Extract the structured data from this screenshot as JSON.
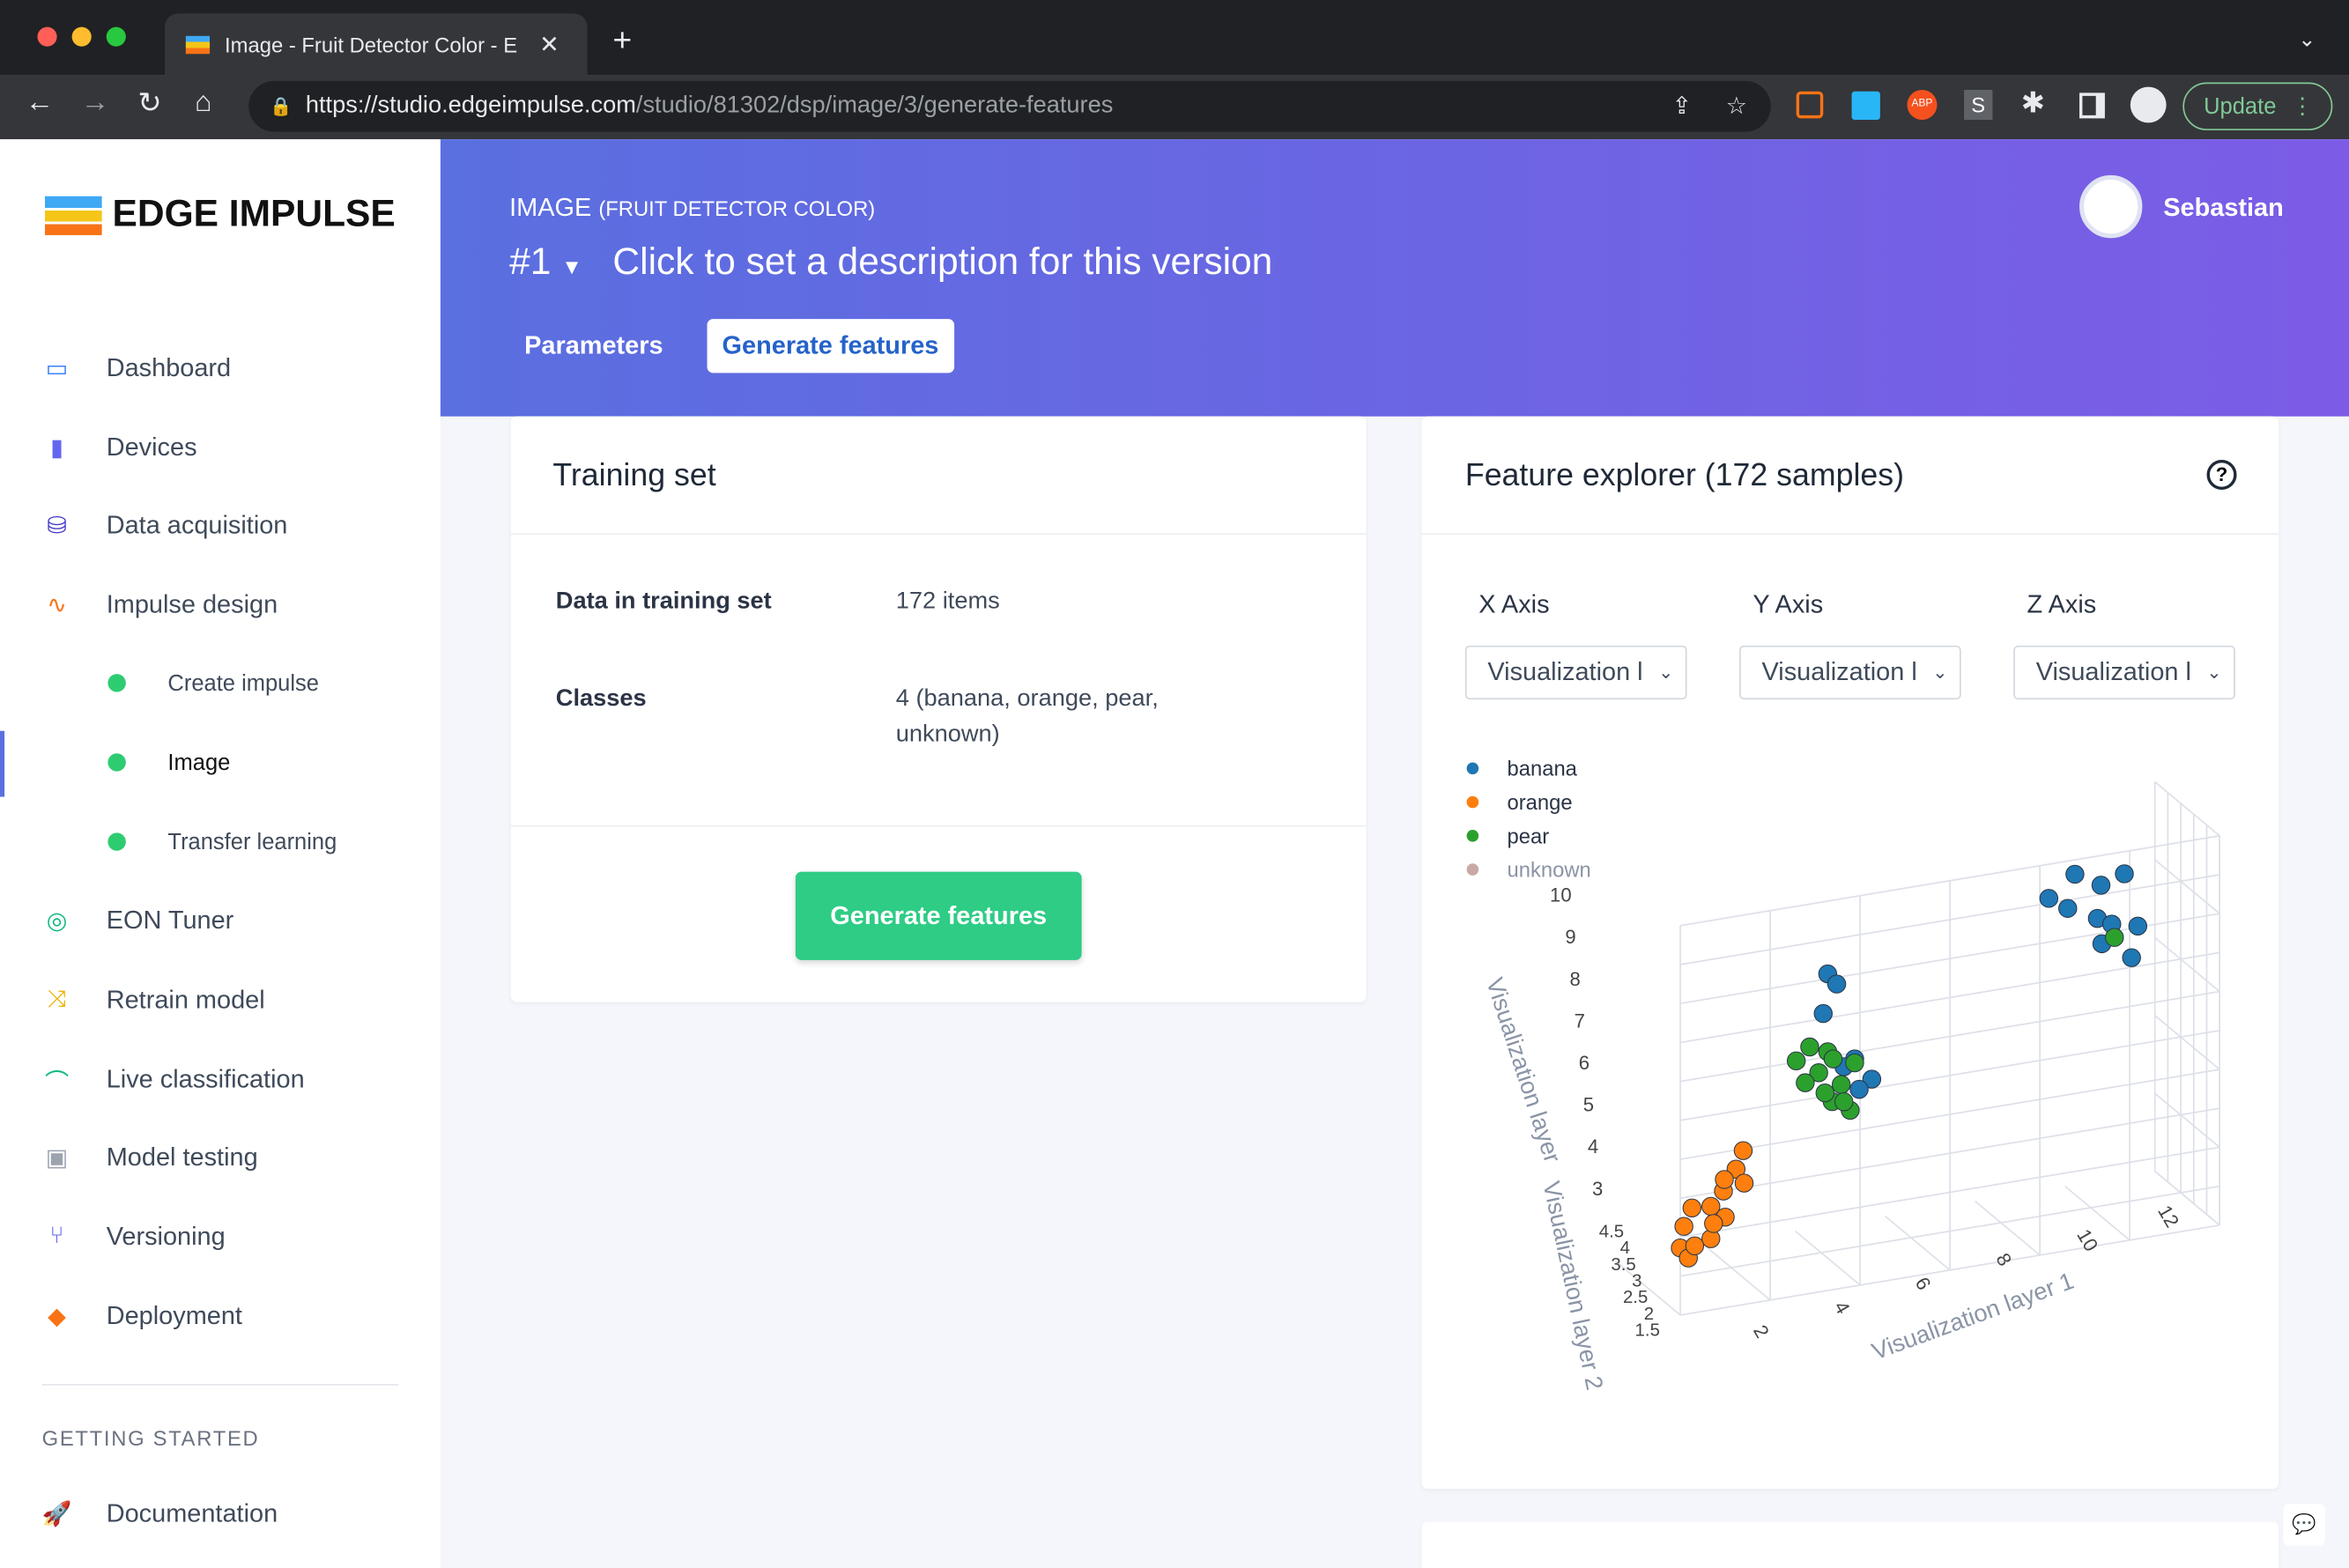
{
  "browser": {
    "tab_title": "Image - Fruit Detector Color - E",
    "url_host": "https://studio.edgeimpulse.com",
    "url_path": "/studio/81302/dsp/image/3/generate-features",
    "update_label": "Update"
  },
  "brand": {
    "name": "EDGE IMPULSE"
  },
  "sidebar": {
    "items": [
      {
        "label": "Dashboard",
        "icon": "monitor-icon",
        "color": "#3b82f6"
      },
      {
        "label": "Devices",
        "icon": "chip-icon",
        "color": "#6366f1"
      },
      {
        "label": "Data acquisition",
        "icon": "database-icon",
        "color": "#4338ca"
      },
      {
        "label": "Impulse design",
        "icon": "pulse-icon",
        "color": "#f97316"
      },
      {
        "label": "Create impulse"
      },
      {
        "label": "Image"
      },
      {
        "label": "Transfer learning"
      },
      {
        "label": "EON Tuner",
        "icon": "compass-icon",
        "color": "#10b981"
      },
      {
        "label": "Retrain model",
        "icon": "shuffle-icon",
        "color": "#eab308"
      },
      {
        "label": "Live classification",
        "icon": "nodes-icon",
        "color": "#10b981"
      },
      {
        "label": "Model testing",
        "icon": "clipboard-icon",
        "color": "#9ca3af"
      },
      {
        "label": "Versioning",
        "icon": "branch-icon",
        "color": "#6366f1"
      },
      {
        "label": "Deployment",
        "icon": "box-icon",
        "color": "#f97316"
      }
    ],
    "section": "GETTING STARTED",
    "doc_label": "Documentation"
  },
  "header": {
    "block": "IMAGE",
    "project": "(FRUIT DETECTOR COLOR)",
    "version": "#1",
    "description": "Click to set a description for this version",
    "user": "Sebastian",
    "tabs": [
      {
        "label": "Parameters",
        "active": false
      },
      {
        "label": "Generate features",
        "active": true
      }
    ]
  },
  "training": {
    "title": "Training set",
    "rows": [
      {
        "label": "Data in training set",
        "value": "172 items"
      },
      {
        "label": "Classes",
        "value": "4 (banana, orange, pear, unknown)"
      }
    ],
    "button": "Generate features",
    "accent": "#2ecc85"
  },
  "explorer": {
    "title": "Feature explorer (172 samples)",
    "axes": [
      {
        "label": "X Axis",
        "value": "Visualization l"
      },
      {
        "label": "Y Axis",
        "value": "Visualization l"
      },
      {
        "label": "Z Axis",
        "value": "Visualization l"
      }
    ]
  },
  "chart_data": {
    "type": "scatter3d",
    "xlabel": "Visualization layer 1",
    "ylabel": "Visualization layer 2",
    "zlabel": "Visualization layer",
    "xticks": [
      "2",
      "4",
      "6",
      "8",
      "10",
      "12"
    ],
    "yticks": [
      "1.5",
      "2",
      "2.5",
      "3",
      "3.5",
      "4",
      "4.5"
    ],
    "zticks": [
      "3",
      "4",
      "5",
      "6",
      "7",
      "8",
      "9",
      "10"
    ],
    "legend": "top-left",
    "series": [
      {
        "name": "banana",
        "color": "#1f77b4",
        "points": [
          [
            10.5,
            9.8,
            3
          ],
          [
            11,
            9.5,
            3.2
          ],
          [
            10,
            9.2,
            2.8
          ],
          [
            11.6,
            9.6,
            3
          ],
          [
            10.8,
            8.8,
            3.5
          ],
          [
            11.2,
            8.5,
            3.3
          ],
          [
            11.9,
            8.2,
            3
          ],
          [
            11.6,
            7.6,
            3.4
          ],
          [
            10.3,
            9.0,
            3.1
          ],
          [
            11.1,
            7.9,
            3
          ],
          [
            5,
            8.3,
            3
          ],
          [
            5.2,
            8,
            3
          ],
          [
            4.9,
            7.3,
            3
          ],
          [
            5.6,
            6,
            3
          ],
          [
            5.9,
            5.5,
            3.2
          ],
          [
            5.4,
            5.8,
            2.9
          ],
          [
            5.7,
            5.2,
            3
          ]
        ]
      },
      {
        "name": "orange",
        "color": "#ff7f0e",
        "points": [
          [
            2,
            2.2,
            2.5
          ],
          [
            1.8,
            1.8,
            2.8
          ],
          [
            2.3,
            2.5,
            2.2
          ],
          [
            2.6,
            2.6,
            2.5
          ],
          [
            3,
            2.8,
            2.2
          ],
          [
            3.2,
            3.4,
            2.4
          ],
          [
            2.8,
            2.4,
            2.8
          ],
          [
            1.9,
            1.6,
            3
          ],
          [
            2.4,
            2.0,
            3
          ],
          [
            3.1,
            3.0,
            2
          ],
          [
            3.4,
            3.8,
            2.3
          ],
          [
            2.2,
            1.7,
            2.6
          ],
          [
            2.7,
            2.1,
            2.4
          ],
          [
            3.3,
            3.1,
            2.6
          ]
        ]
      },
      {
        "name": "pear",
        "color": "#2ca02c",
        "points": [
          [
            4.3,
            6.2,
            3
          ],
          [
            4.6,
            6.5,
            3
          ],
          [
            5,
            6.3,
            3
          ],
          [
            4.8,
            5.8,
            3
          ],
          [
            5.3,
            5.4,
            3
          ],
          [
            5.1,
            5,
            3
          ],
          [
            5.5,
            4.7,
            3
          ],
          [
            4.5,
            5.6,
            3
          ],
          [
            5.2,
            6,
            2.8
          ],
          [
            5.6,
            5.9,
            3
          ],
          [
            4.9,
            5.3,
            3.1
          ],
          [
            5.4,
            4.9,
            2.9
          ],
          [
            11.3,
            8.1,
            3.2
          ]
        ]
      },
      {
        "name": "unknown",
        "color": "#c9a9a6",
        "points": []
      }
    ]
  }
}
